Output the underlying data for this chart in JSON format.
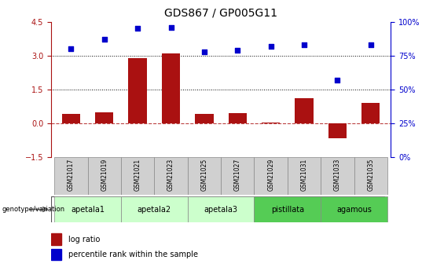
{
  "title": "GDS867 / GP005G11",
  "samples": [
    "GSM21017",
    "GSM21019",
    "GSM21021",
    "GSM21023",
    "GSM21025",
    "GSM21027",
    "GSM21029",
    "GSM21031",
    "GSM21033",
    "GSM21035"
  ],
  "log_ratio": [
    0.4,
    0.5,
    2.9,
    3.1,
    0.4,
    0.45,
    0.05,
    1.1,
    -0.65,
    0.9
  ],
  "percentile_rank": [
    80,
    87,
    95,
    96,
    78,
    79,
    82,
    83,
    57,
    83
  ],
  "groups": [
    {
      "name": "apetala1",
      "indices": [
        0,
        1
      ],
      "color": "#ccffcc"
    },
    {
      "name": "apetala2",
      "indices": [
        2,
        3
      ],
      "color": "#ccffcc"
    },
    {
      "name": "apetala3",
      "indices": [
        4,
        5
      ],
      "color": "#ccffcc"
    },
    {
      "name": "pistillata",
      "indices": [
        6,
        7
      ],
      "color": "#55cc55"
    },
    {
      "name": "agamous",
      "indices": [
        8,
        9
      ],
      "color": "#55cc55"
    }
  ],
  "ylim_left": [
    -1.5,
    4.5
  ],
  "ylim_right": [
    0,
    100
  ],
  "yticks_left": [
    -1.5,
    0.0,
    1.5,
    3.0,
    4.5
  ],
  "yticks_right": [
    0,
    25,
    50,
    75,
    100
  ],
  "bar_color": "#aa1111",
  "scatter_color": "#0000cc",
  "bar_width": 0.55,
  "title_fontsize": 10,
  "tick_fontsize": 7,
  "sample_box_color": "#d0d0d0",
  "sample_box_edge": "#888888"
}
